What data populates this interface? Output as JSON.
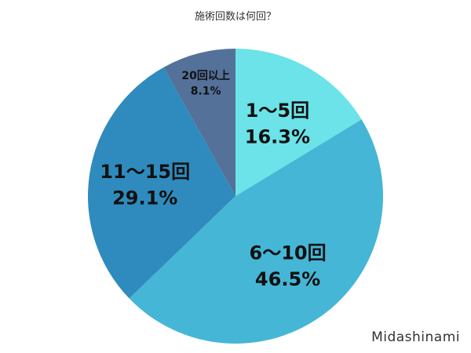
{
  "chart_data": {
    "type": "pie",
    "title": "施術回数は何回？",
    "slices": [
      {
        "label": "1〜5回",
        "value": 16.3,
        "display": "16.3%",
        "color": "#6be3e8"
      },
      {
        "label": "6〜10回",
        "value": 46.5,
        "display": "46.5%",
        "color": "#45b6d6"
      },
      {
        "label": "11〜15回",
        "value": 29.1,
        "display": "29.1%",
        "color": "#2f8bbd"
      },
      {
        "label": "20回以上",
        "value": 8.1,
        "display": "8.1%",
        "color": "#54719a"
      }
    ]
  },
  "watermark": "Midashinami"
}
